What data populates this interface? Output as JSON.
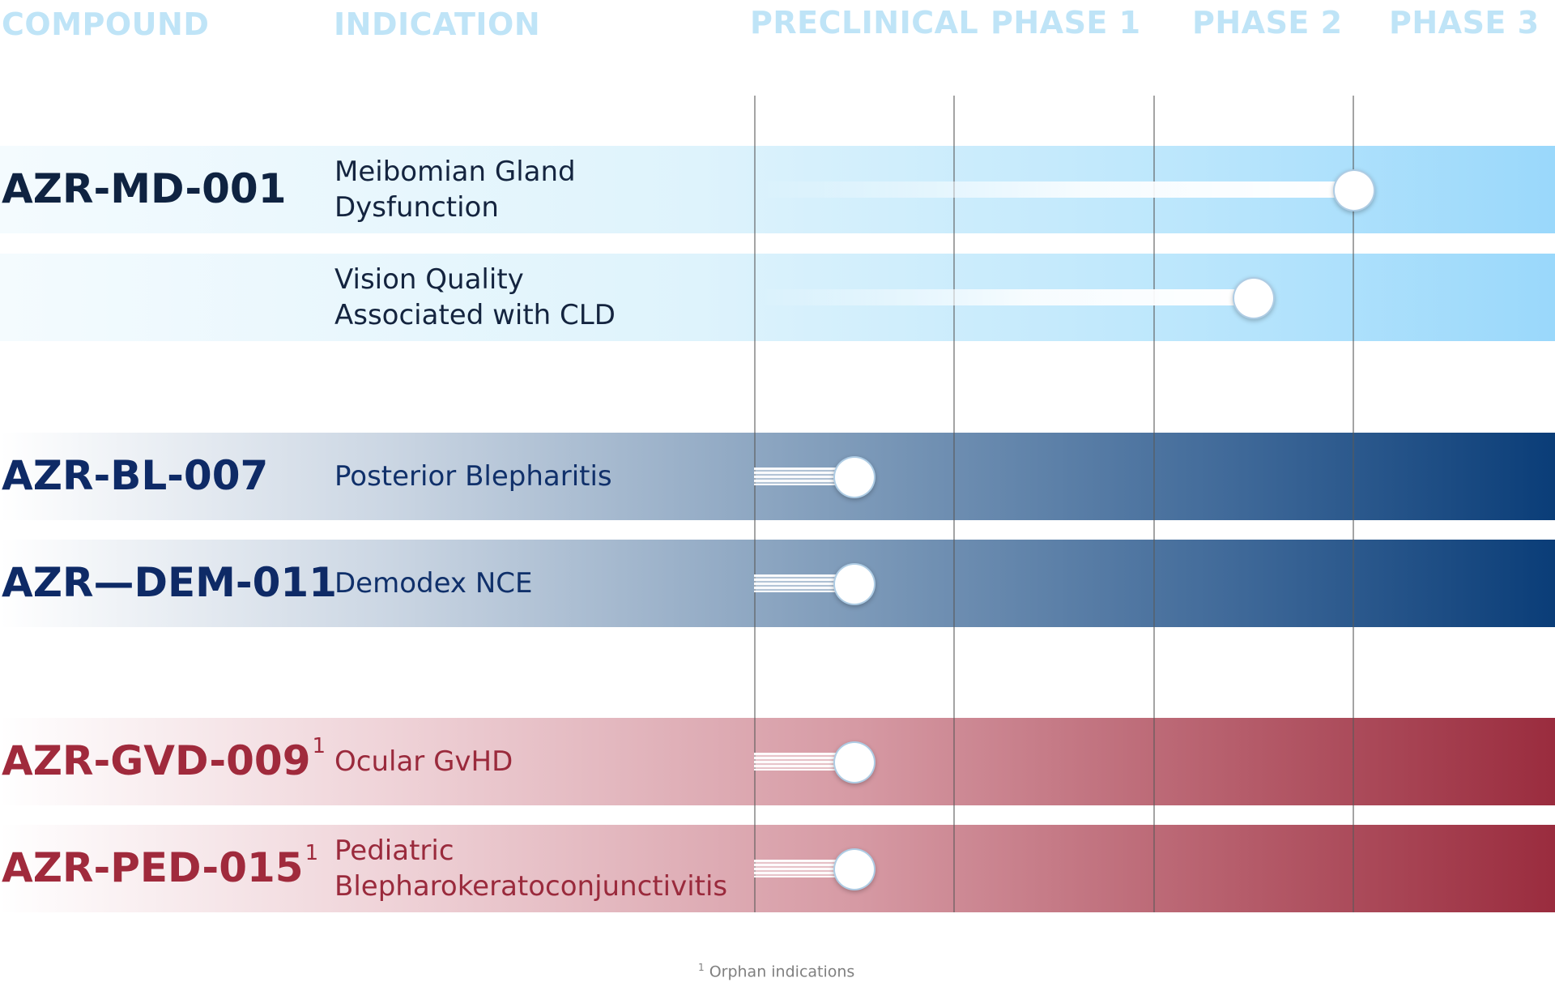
{
  "chart_data": {
    "type": "table",
    "columns": [
      "COMPOUND",
      "INDICATION",
      "PRECLINICAL",
      "PHASE 1",
      "PHASE 2",
      "PHASE 3"
    ],
    "stages": [
      "PRECLINICAL",
      "PHASE 1",
      "PHASE 2",
      "PHASE 3"
    ],
    "rows": [
      {
        "compound": "AZR-MD-001",
        "sup": "",
        "indication": [
          "Meibomian Gland",
          "Dysfunction"
        ],
        "progress": 3.0,
        "group": "blue",
        "compound_color": "#0f2341"
      },
      {
        "compound": "",
        "sup": "",
        "indication": [
          "Vision Quality",
          "Associated with CLD"
        ],
        "progress": 2.5,
        "group": "blue",
        "compound_color": "#0f2341"
      },
      {
        "compound": "AZR-BL-007",
        "sup": "",
        "indication": [
          "Posterior Blepharitis"
        ],
        "progress": 0.5,
        "group": "navy",
        "compound_color": "#0e2a66"
      },
      {
        "compound": "AZR—DEM-011",
        "sup": "",
        "indication": [
          "Demodex NCE"
        ],
        "progress": 0.5,
        "group": "navy",
        "compound_color": "#0e2a66"
      },
      {
        "compound": "AZR-GVD-009",
        "sup": "1",
        "indication": [
          "Ocular GvHD"
        ],
        "progress": 0.5,
        "group": "red",
        "compound_color": "#a02a3c"
      },
      {
        "compound": "AZR-PED-015",
        "sup": "1",
        "indication": [
          "Pediatric",
          "Blepharokeratoconjunctivitis"
        ],
        "progress": 0.5,
        "group": "red",
        "compound_color": "#a02a3c"
      }
    ],
    "footnote": {
      "marker": "1",
      "text": "Orphan indications"
    }
  },
  "colors": {
    "header": "#bfe4f7",
    "blue_indication_text": "#14243f",
    "navy_indication_text": "#10306a",
    "red_indication_text": "#9a2a3c"
  }
}
